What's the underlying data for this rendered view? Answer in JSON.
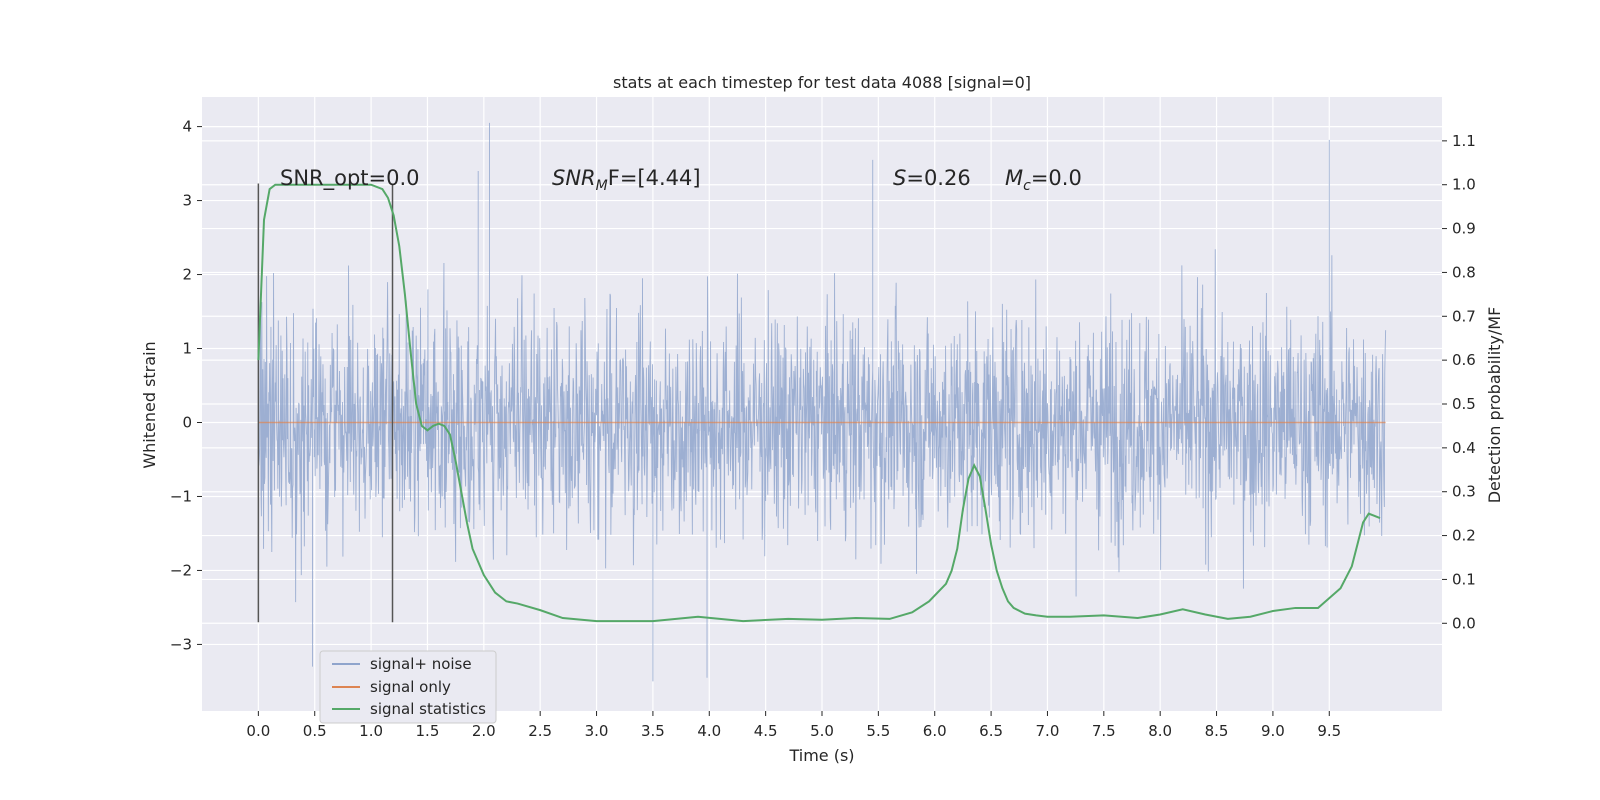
{
  "chart_data": {
    "type": "line",
    "title": "stats at each timestep for test data 4088 [signal=0]",
    "xlabel": "Time (s)",
    "ylabel": "Whitened strain",
    "ylabel_right": "Detection probability/MF",
    "xlim": [
      -0.5,
      10.5
    ],
    "ylim": [
      -3.9,
      4.4
    ],
    "ylim_right": [
      -0.2,
      1.2
    ],
    "x_ticks": [
      "0.0",
      "0.5",
      "1.0",
      "1.5",
      "2.0",
      "2.5",
      "3.0",
      "3.5",
      "4.0",
      "4.5",
      "5.0",
      "5.5",
      "6.0",
      "6.5",
      "7.0",
      "7.5",
      "8.0",
      "8.5",
      "9.0",
      "9.5"
    ],
    "y_ticks": [
      "4",
      "3",
      "2",
      "1",
      "0",
      "−1",
      "−2",
      "−3"
    ],
    "y_right_ticks": [
      "1.1",
      "1.0",
      "0.9",
      "0.8",
      "0.7",
      "0.6",
      "0.5",
      "0.4",
      "0.3",
      "0.2",
      "0.1",
      "0.0"
    ],
    "grid": true,
    "legend_position": "lower-left",
    "annotations": {
      "snr_opt": "SNR_opt=0.0",
      "snr_mf_sym": "SNR",
      "snr_mf_sub": "M",
      "snr_mf_rest": "F=[4.44]",
      "s_sym": "S",
      "s_val": "=0.26",
      "mc_sym": "M",
      "mc_sub": "c",
      "mc_val": "=0.0"
    },
    "vlines": [
      0.0,
      1.19
    ],
    "series": [
      {
        "name": "signal+ noise",
        "color": "#8fa4cc",
        "x_range": [
          0.0,
          10.0
        ],
        "envelope": "dense whitened noise roughly within -3.5 to 4.1",
        "peaks": [
          [
            2.05,
            4.05
          ],
          [
            9.5,
            3.82
          ],
          [
            5.45,
            3.55
          ],
          [
            1.95,
            3.4
          ],
          [
            3.5,
            -3.5
          ],
          [
            3.98,
            -3.45
          ],
          [
            0.48,
            -3.3
          ]
        ]
      },
      {
        "name": "signal only",
        "color": "#dd8452",
        "x": [
          0.0,
          10.0
        ],
        "y": [
          0.0,
          0.0
        ]
      },
      {
        "name": "signal statistics",
        "color": "#55a868",
        "axis": "right",
        "x": [
          0.0,
          0.05,
          0.1,
          0.15,
          0.2,
          0.3,
          0.4,
          0.6,
          0.8,
          1.0,
          1.1,
          1.15,
          1.2,
          1.25,
          1.3,
          1.35,
          1.4,
          1.45,
          1.5,
          1.55,
          1.6,
          1.65,
          1.7,
          1.75,
          1.8,
          1.85,
          1.9,
          2.0,
          2.1,
          2.2,
          2.3,
          2.5,
          2.7,
          3.0,
          3.5,
          3.9,
          4.3,
          4.7,
          5.0,
          5.3,
          5.6,
          5.8,
          5.95,
          6.1,
          6.15,
          6.2,
          6.25,
          6.3,
          6.35,
          6.4,
          6.45,
          6.5,
          6.55,
          6.6,
          6.65,
          6.7,
          6.8,
          6.9,
          7.0,
          7.2,
          7.5,
          7.8,
          8.0,
          8.2,
          8.4,
          8.6,
          8.8,
          9.0,
          9.2,
          9.4,
          9.6,
          9.7,
          9.75,
          9.8,
          9.85,
          9.9,
          9.95
        ],
        "y": [
          0.6,
          0.92,
          0.99,
          1.0,
          1.0,
          1.0,
          1.0,
          1.0,
          1.0,
          1.0,
          0.99,
          0.97,
          0.93,
          0.86,
          0.75,
          0.62,
          0.5,
          0.45,
          0.44,
          0.45,
          0.455,
          0.45,
          0.43,
          0.37,
          0.3,
          0.23,
          0.17,
          0.11,
          0.07,
          0.05,
          0.045,
          0.03,
          0.012,
          0.005,
          0.005,
          0.015,
          0.005,
          0.01,
          0.008,
          0.012,
          0.01,
          0.025,
          0.05,
          0.09,
          0.12,
          0.17,
          0.26,
          0.33,
          0.36,
          0.335,
          0.26,
          0.18,
          0.12,
          0.08,
          0.05,
          0.035,
          0.022,
          0.018,
          0.015,
          0.015,
          0.018,
          0.012,
          0.02,
          0.032,
          0.02,
          0.01,
          0.015,
          0.028,
          0.035,
          0.035,
          0.08,
          0.13,
          0.18,
          0.23,
          0.25,
          0.245,
          0.24
        ]
      }
    ]
  }
}
